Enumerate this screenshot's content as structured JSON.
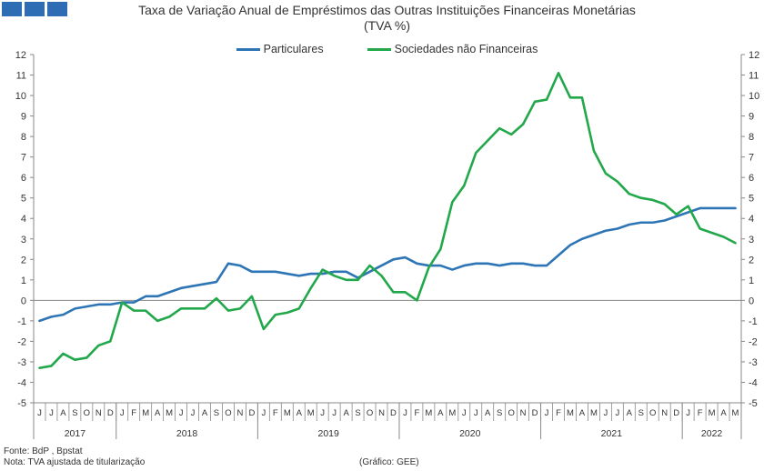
{
  "header": {
    "logo_colors": [
      "#2E6DB4",
      "#2E6DB4",
      "#2E6DB4"
    ],
    "title_line1": "Taxa de Variação Anual de Empréstimos das Outras Instituições Financeiras Monetárias",
    "title_line2": "(TVA %)"
  },
  "footer": {
    "source": "Fonte: BdP , Bpstat",
    "note": "Nota: TVA ajustada de titularização",
    "credit": "(Gráfico: GEE)"
  },
  "chart_data": {
    "type": "line",
    "title": "Taxa de Variação Anual de Empréstimos das Outras Instituições Financeiras Monetárias (TVA %)",
    "ylim": [
      -5,
      12
    ],
    "yticks": [
      -5,
      -4,
      -3,
      -2,
      -1,
      0,
      1,
      2,
      3,
      4,
      5,
      6,
      7,
      8,
      9,
      10,
      11,
      12
    ],
    "legend_position": "top-center",
    "grid": false,
    "month_labels": [
      "J",
      "J",
      "A",
      "S",
      "O",
      "N",
      "D",
      "J",
      "F",
      "M",
      "A",
      "M",
      "J",
      "J",
      "A",
      "S",
      "O",
      "N",
      "D",
      "J",
      "F",
      "M",
      "A",
      "M",
      "J",
      "J",
      "A",
      "S",
      "O",
      "N",
      "D",
      "J",
      "F",
      "M",
      "A",
      "M",
      "J",
      "J",
      "A",
      "S",
      "O",
      "N",
      "D",
      "J",
      "F",
      "M",
      "A",
      "M",
      "J",
      "J",
      "A",
      "S",
      "O",
      "N",
      "D",
      "J",
      "F",
      "M",
      "A",
      "M"
    ],
    "years": [
      {
        "label": "2017",
        "start": 0,
        "end": 7
      },
      {
        "label": "2018",
        "start": 7,
        "end": 19
      },
      {
        "label": "2019",
        "start": 19,
        "end": 31
      },
      {
        "label": "2020",
        "start": 31,
        "end": 43
      },
      {
        "label": "2021",
        "start": 43,
        "end": 55
      },
      {
        "label": "2022",
        "start": 55,
        "end": 60
      }
    ],
    "series": [
      {
        "name": "Particulares",
        "color": "#2E75B6",
        "values": [
          -1.0,
          -0.8,
          -0.7,
          -0.4,
          -0.3,
          -0.2,
          -0.2,
          -0.1,
          -0.1,
          0.2,
          0.2,
          0.4,
          0.6,
          0.7,
          0.8,
          0.9,
          1.8,
          1.7,
          1.4,
          1.4,
          1.4,
          1.3,
          1.2,
          1.3,
          1.3,
          1.4,
          1.4,
          1.1,
          1.4,
          1.7,
          2.0,
          2.1,
          1.8,
          1.7,
          1.7,
          1.5,
          1.7,
          1.8,
          1.8,
          1.7,
          1.8,
          1.8,
          1.7,
          1.7,
          2.2,
          2.7,
          3.0,
          3.2,
          3.4,
          3.5,
          3.7,
          3.8,
          3.8,
          3.9,
          4.1,
          4.3,
          4.5,
          4.5,
          4.5,
          4.5
        ]
      },
      {
        "name": "Sociedades não Financeiras",
        "color": "#22A84B",
        "values": [
          -3.3,
          -3.2,
          -2.6,
          -2.9,
          -2.8,
          -2.2,
          -2.0,
          -0.1,
          -0.5,
          -0.5,
          -1.0,
          -0.8,
          -0.4,
          -0.4,
          -0.4,
          0.1,
          -0.5,
          -0.4,
          0.2,
          -1.4,
          -0.7,
          -0.6,
          -0.4,
          0.6,
          1.5,
          1.2,
          1.0,
          1.0,
          1.7,
          1.2,
          0.4,
          0.4,
          0.0,
          1.6,
          2.5,
          4.8,
          5.6,
          7.2,
          7.8,
          8.4,
          8.1,
          8.6,
          9.7,
          9.8,
          11.1,
          9.9,
          9.9,
          7.3,
          6.2,
          5.8,
          5.2,
          5.0,
          4.9,
          4.7,
          4.2,
          4.6,
          3.5,
          3.3,
          3.1,
          2.8
        ]
      }
    ]
  }
}
